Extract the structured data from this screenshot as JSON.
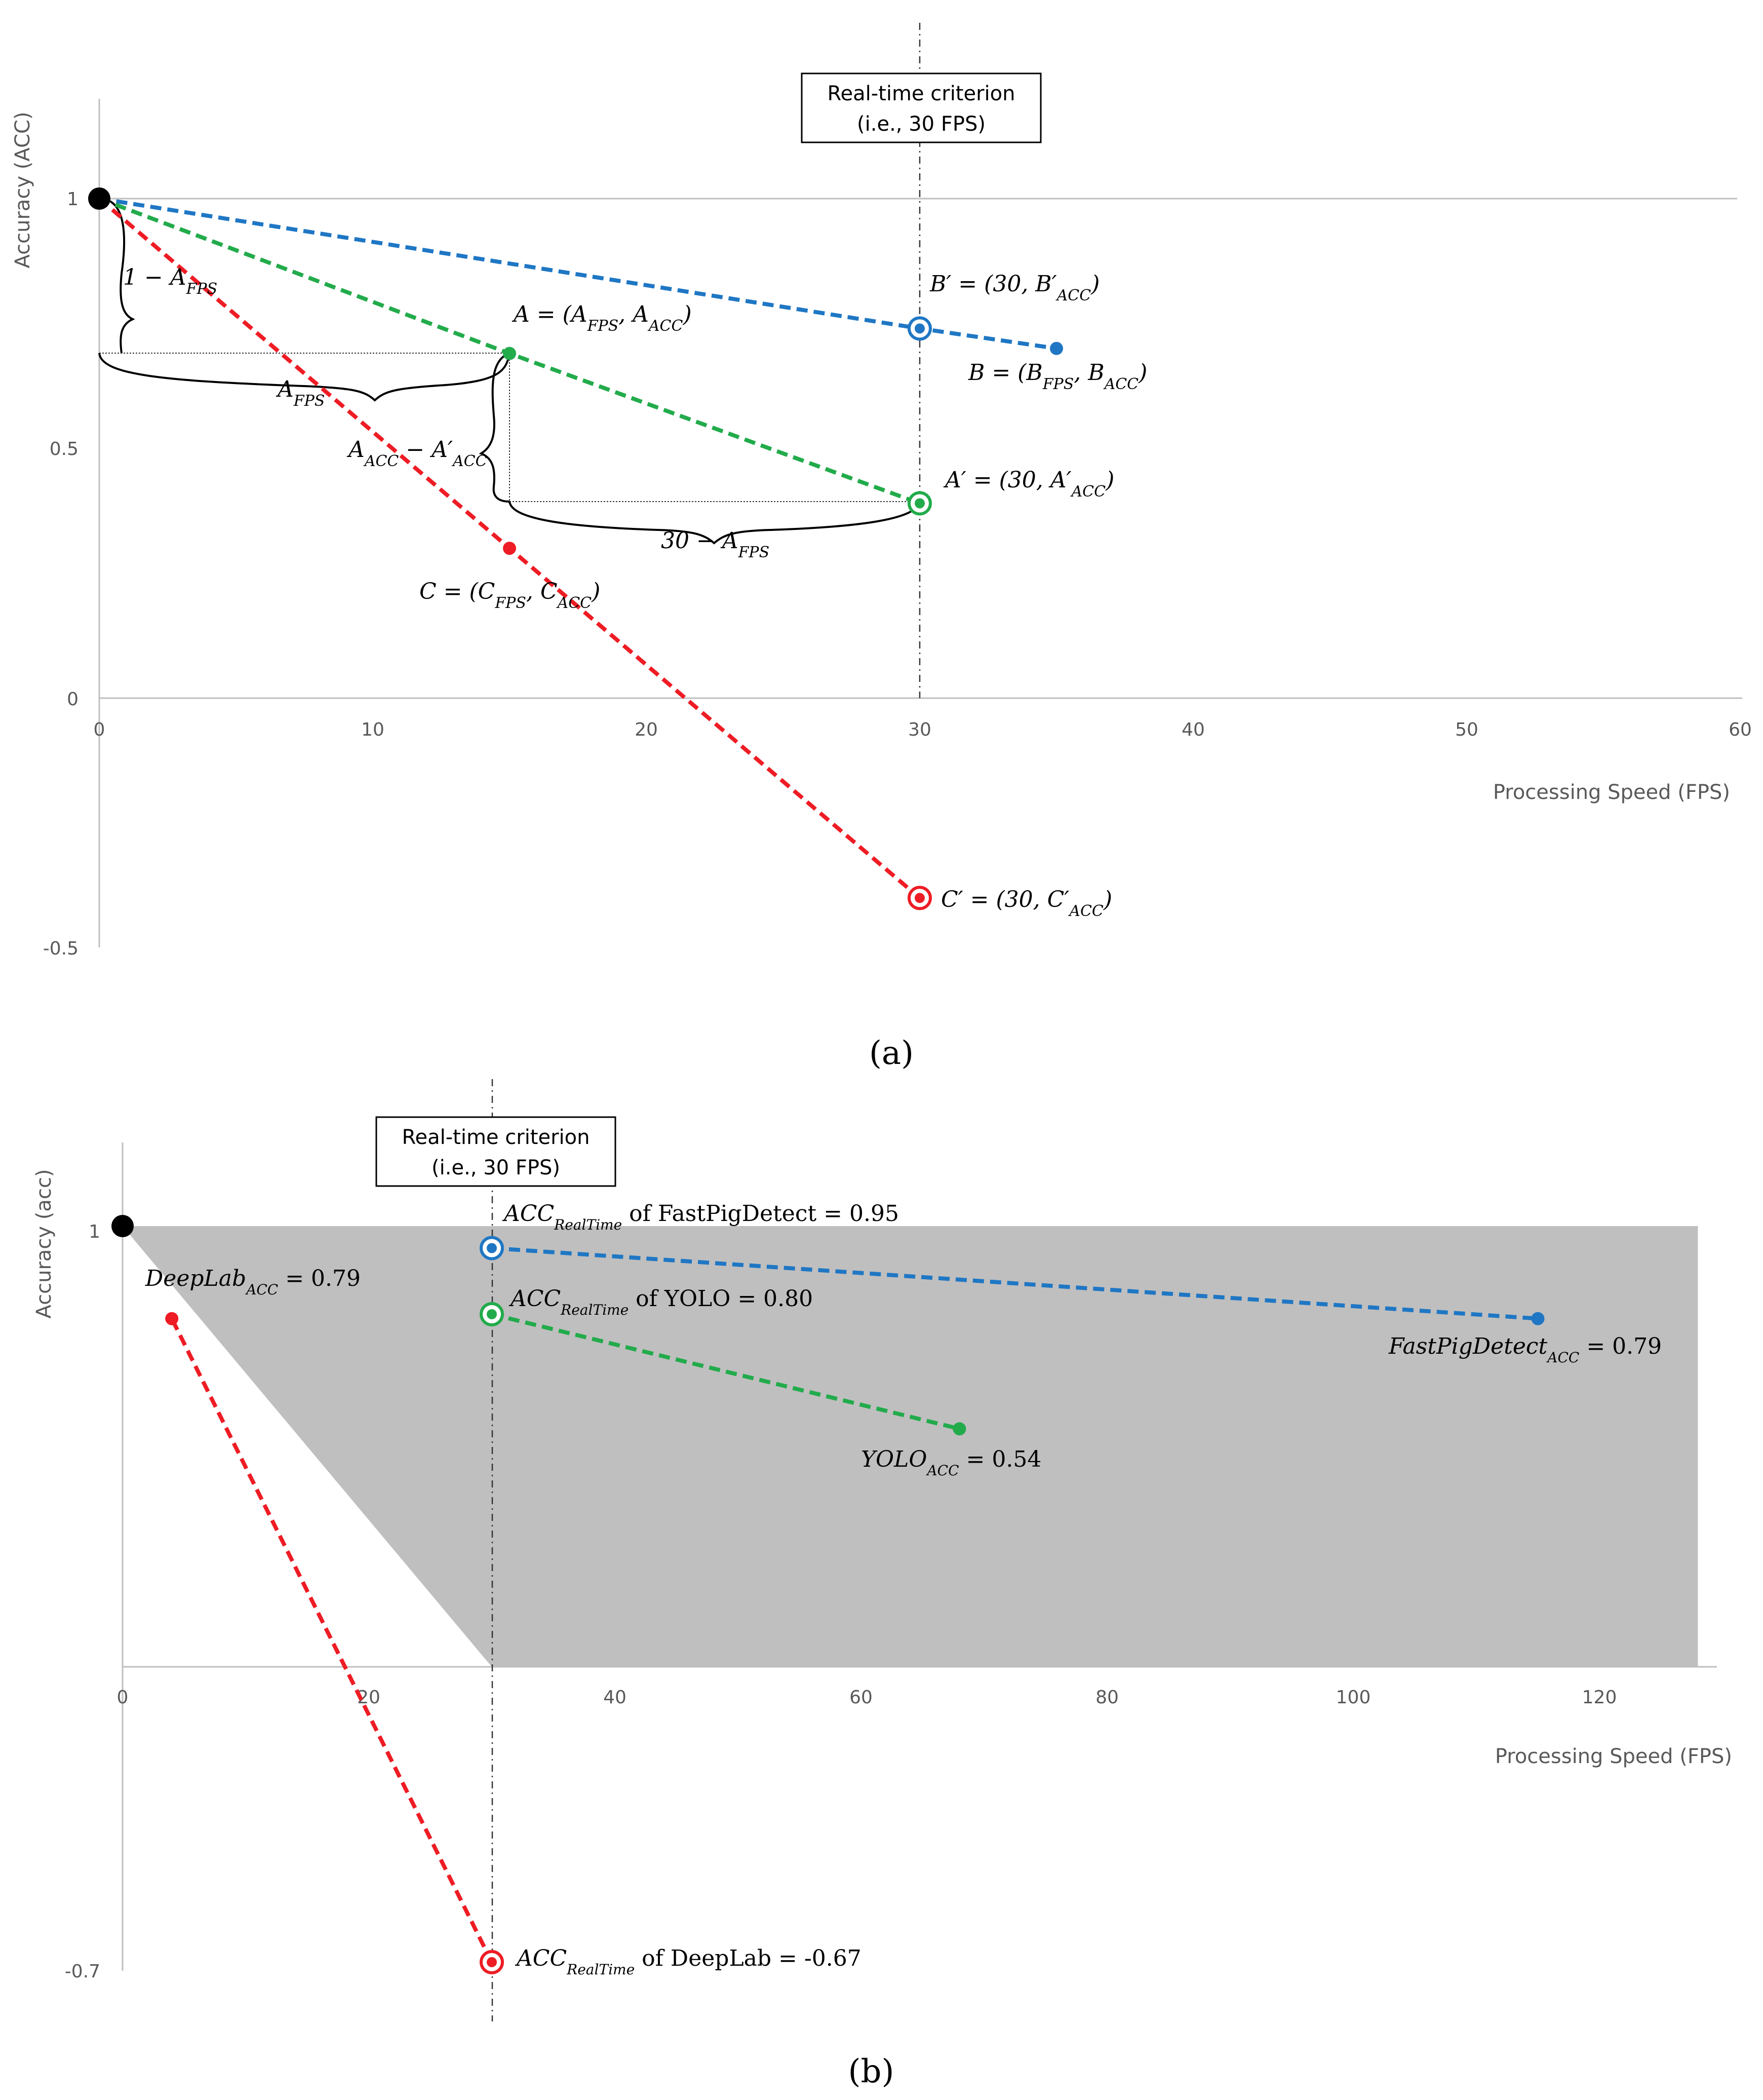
{
  "colors": {
    "blue": "#1f77c4",
    "green": "#22ab4b",
    "red": "#ee1c24",
    "axis": "#bfbfbf",
    "shade": "#bfbfbf",
    "text": "#595959"
  },
  "chart_data": [
    {
      "panel": "a",
      "caption": "(a)",
      "type": "line",
      "xlabel": "Processing Speed (FPS)",
      "ylabel": "Accuracy (ACC)",
      "xlim": [
        0,
        60
      ],
      "ylim": [
        -0.5,
        1.2
      ],
      "x_ticks": [
        "0",
        "10",
        "20",
        "30",
        "40",
        "50",
        "60"
      ],
      "y_ticks": [
        "-0.5",
        "0",
        "0.5",
        "1"
      ],
      "gridlines_y": [
        1
      ],
      "criterion": {
        "x": 30,
        "label_line1": "Real-time criterion",
        "label_line2": "(i.e., 30 FPS)"
      },
      "origin_point": {
        "x": 0,
        "y": 1
      },
      "series": [
        {
          "color": "blue",
          "points": [
            [
              0,
              1
            ],
            [
              30,
              0.74
            ],
            [
              35,
              0.7
            ]
          ],
          "measured": [
            35,
            0.7
          ],
          "realtime": [
            30,
            0.74
          ]
        },
        {
          "color": "green",
          "points": [
            [
              0,
              1
            ],
            [
              15,
              0.69
            ],
            [
              30,
              0.39
            ]
          ],
          "measured": [
            15,
            0.69
          ],
          "realtime": [
            30,
            0.39
          ]
        },
        {
          "color": "red",
          "points": [
            [
              0,
              1
            ],
            [
              15,
              0.3
            ],
            [
              30,
              -0.4
            ]
          ],
          "measured": [
            15,
            0.3
          ],
          "realtime": [
            30,
            -0.4
          ]
        }
      ],
      "annotations": {
        "one_minus": "1 − A",
        "one_minus_sub": "FPS",
        "a_fps": "A",
        "a_fps_sub": "FPS",
        "a_point": "A = (A",
        "a_point_s1": "FPS",
        "a_point_m": ", A",
        "a_point_s2": "ACC",
        "a_point_end": ")",
        "a_diff_1": "A",
        "a_diff_s1": "ACC",
        "a_diff_2": " − A′",
        "a_diff_s2": "ACC",
        "thirty_minus": "30 − A",
        "thirty_minus_sub": "FPS",
        "c_point": "C = (C",
        "c_point_s1": "FPS",
        "c_point_m": ", C",
        "c_point_s2": "ACC",
        "c_point_end": ")",
        "b_prime": "B′ = (30, B′",
        "b_prime_sub": "ACC",
        "b_prime_end": ")",
        "b_point": "B = (B",
        "b_point_s1": "FPS",
        "b_point_m": ", B",
        "b_point_s2": "ACC",
        "b_point_end": ")",
        "a_prime": "A′ = (30, A′",
        "a_prime_sub": "ACC",
        "a_prime_end": ")",
        "c_prime": "C′ = (30, C′",
        "c_prime_sub": "ACC",
        "c_prime_end": ")"
      }
    },
    {
      "panel": "b",
      "caption": "(b)",
      "type": "line",
      "xlabel": "Processing Speed (FPS)",
      "ylabel": "Accuracy (acc)",
      "xlim": [
        0,
        130
      ],
      "ylim": [
        -0.7,
        1.2
      ],
      "x_ticks": [
        "0",
        "20",
        "40",
        "60",
        "80",
        "100",
        "120"
      ],
      "y_ticks": [
        "-0.7",
        "1"
      ],
      "criterion": {
        "x": 30,
        "label_line1": "Real-time criterion",
        "label_line2": "(i.e., 30 FPS)"
      },
      "origin_point": {
        "x": 0,
        "y": 1
      },
      "shaded_region": [
        [
          0,
          1
        ],
        [
          128,
          1
        ],
        [
          128,
          0
        ],
        [
          30,
          0
        ]
      ],
      "series": [
        {
          "name": "FastPigDetect",
          "color": "blue",
          "measured": [
            115,
            0.79
          ],
          "realtime": [
            30,
            0.95
          ]
        },
        {
          "name": "YOLO",
          "color": "green",
          "measured": [
            68,
            0.54
          ],
          "realtime": [
            30,
            0.8
          ]
        },
        {
          "name": "DeepLab",
          "color": "red",
          "measured": [
            4,
            0.79
          ],
          "realtime": [
            30,
            -0.67
          ]
        }
      ],
      "labels": {
        "fpd_rt_acc": "ACC",
        "fpd_rt_sub": "RealTime",
        "fpd_rt_rest": " of FastPigDetect = 0.95",
        "yolo_rt_acc": "ACC",
        "yolo_rt_sub": "RealTime",
        "yolo_rt_rest": " of YOLO = 0.80",
        "dl_rt_acc": "ACC",
        "dl_rt_sub": "RealTime",
        "dl_rt_rest": " of DeepLab = -0.67",
        "dl_name": "DeepLab",
        "dl_sub": "ACC",
        "dl_val": " = 0.79",
        "fpd_name": "FastPigDetect",
        "fpd_sub": "ACC",
        "fpd_val": " = 0.79",
        "yolo_name": "YOLO",
        "yolo_sub": "ACC",
        "yolo_val": " = 0.54"
      }
    }
  ]
}
